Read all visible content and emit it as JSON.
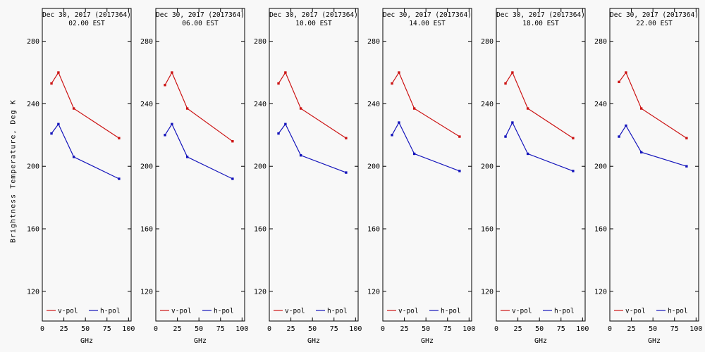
{
  "figure": {
    "background": "#f8f8f8",
    "ylabel": "Brightness Temperature, Deg K",
    "xlabel": "GHz"
  },
  "legend": {
    "vpol_label": "v-pol",
    "hpol_label": "h-pol"
  },
  "colors": {
    "vpol": "#cc1414",
    "hpol": "#1414bb",
    "axis": "#000000",
    "text": "#000000"
  },
  "chart_data": [
    {
      "type": "line",
      "title": "Dec 30, 2017 (2017364)",
      "subtitle": "02.00 EST",
      "xlabel": "GHz",
      "x": [
        10.65,
        18.7,
        36.5,
        89.0
      ],
      "x_ticks": [
        0,
        25,
        50,
        75,
        100
      ],
      "y_ticks": [
        120,
        160,
        200,
        240,
        280
      ],
      "xlim": [
        0,
        103
      ],
      "ylim": [
        101,
        301
      ],
      "series": [
        {
          "name": "v-pol",
          "color_key": "vpol",
          "values": [
            253,
            260,
            237,
            218
          ]
        },
        {
          "name": "h-pol",
          "color_key": "hpol",
          "values": [
            221,
            227,
            206,
            192
          ]
        }
      ]
    },
    {
      "type": "line",
      "title": "Dec 30, 2017 (2017364)",
      "subtitle": "06.00 EST",
      "xlabel": "GHz",
      "x": [
        10.65,
        18.7,
        36.5,
        89.0
      ],
      "x_ticks": [
        0,
        25,
        50,
        75,
        100
      ],
      "y_ticks": [
        120,
        160,
        200,
        240,
        280
      ],
      "xlim": [
        0,
        103
      ],
      "ylim": [
        101,
        301
      ],
      "series": [
        {
          "name": "v-pol",
          "color_key": "vpol",
          "values": [
            252,
            260,
            237,
            216
          ]
        },
        {
          "name": "h-pol",
          "color_key": "hpol",
          "values": [
            220,
            227,
            206,
            192
          ]
        }
      ]
    },
    {
      "type": "line",
      "title": "Dec 30, 2017 (2017364)",
      "subtitle": "10.00 EST",
      "xlabel": "GHz",
      "x": [
        10.65,
        18.7,
        36.5,
        89.0
      ],
      "x_ticks": [
        0,
        25,
        50,
        75,
        100
      ],
      "y_ticks": [
        120,
        160,
        200,
        240,
        280
      ],
      "xlim": [
        0,
        103
      ],
      "ylim": [
        101,
        301
      ],
      "series": [
        {
          "name": "v-pol",
          "color_key": "vpol",
          "values": [
            253,
            260,
            237,
            218
          ]
        },
        {
          "name": "h-pol",
          "color_key": "hpol",
          "values": [
            221,
            227,
            207,
            196
          ]
        }
      ]
    },
    {
      "type": "line",
      "title": "Dec 30, 2017 (2017364)",
      "subtitle": "14.00 EST",
      "xlabel": "GHz",
      "x": [
        10.65,
        18.7,
        36.5,
        89.0
      ],
      "x_ticks": [
        0,
        25,
        50,
        75,
        100
      ],
      "y_ticks": [
        120,
        160,
        200,
        240,
        280
      ],
      "xlim": [
        0,
        103
      ],
      "ylim": [
        101,
        301
      ],
      "series": [
        {
          "name": "v-pol",
          "color_key": "vpol",
          "values": [
            253,
            260,
            237,
            219
          ]
        },
        {
          "name": "h-pol",
          "color_key": "hpol",
          "values": [
            220,
            228,
            208,
            197
          ]
        }
      ]
    },
    {
      "type": "line",
      "title": "Dec 30, 2017 (2017364)",
      "subtitle": "18.00 EST",
      "xlabel": "GHz",
      "x": [
        10.65,
        18.7,
        36.5,
        89.0
      ],
      "x_ticks": [
        0,
        25,
        50,
        75,
        100
      ],
      "y_ticks": [
        120,
        160,
        200,
        240,
        280
      ],
      "xlim": [
        0,
        103
      ],
      "ylim": [
        101,
        301
      ],
      "series": [
        {
          "name": "v-pol",
          "color_key": "vpol",
          "values": [
            253,
            260,
            237,
            218
          ]
        },
        {
          "name": "h-pol",
          "color_key": "hpol",
          "values": [
            219,
            228,
            208,
            197
          ]
        }
      ]
    },
    {
      "type": "line",
      "title": "Dec 30, 2017 (2017364)",
      "subtitle": "22.00 EST",
      "xlabel": "GHz",
      "x": [
        10.65,
        18.7,
        36.5,
        89.0
      ],
      "x_ticks": [
        0,
        25,
        50,
        75,
        100
      ],
      "y_ticks": [
        120,
        160,
        200,
        240,
        280
      ],
      "xlim": [
        0,
        103
      ],
      "ylim": [
        101,
        301
      ],
      "series": [
        {
          "name": "v-pol",
          "color_key": "vpol",
          "values": [
            254,
            260,
            237,
            218
          ]
        },
        {
          "name": "h-pol",
          "color_key": "hpol",
          "values": [
            219,
            226,
            209,
            200
          ]
        }
      ]
    }
  ]
}
